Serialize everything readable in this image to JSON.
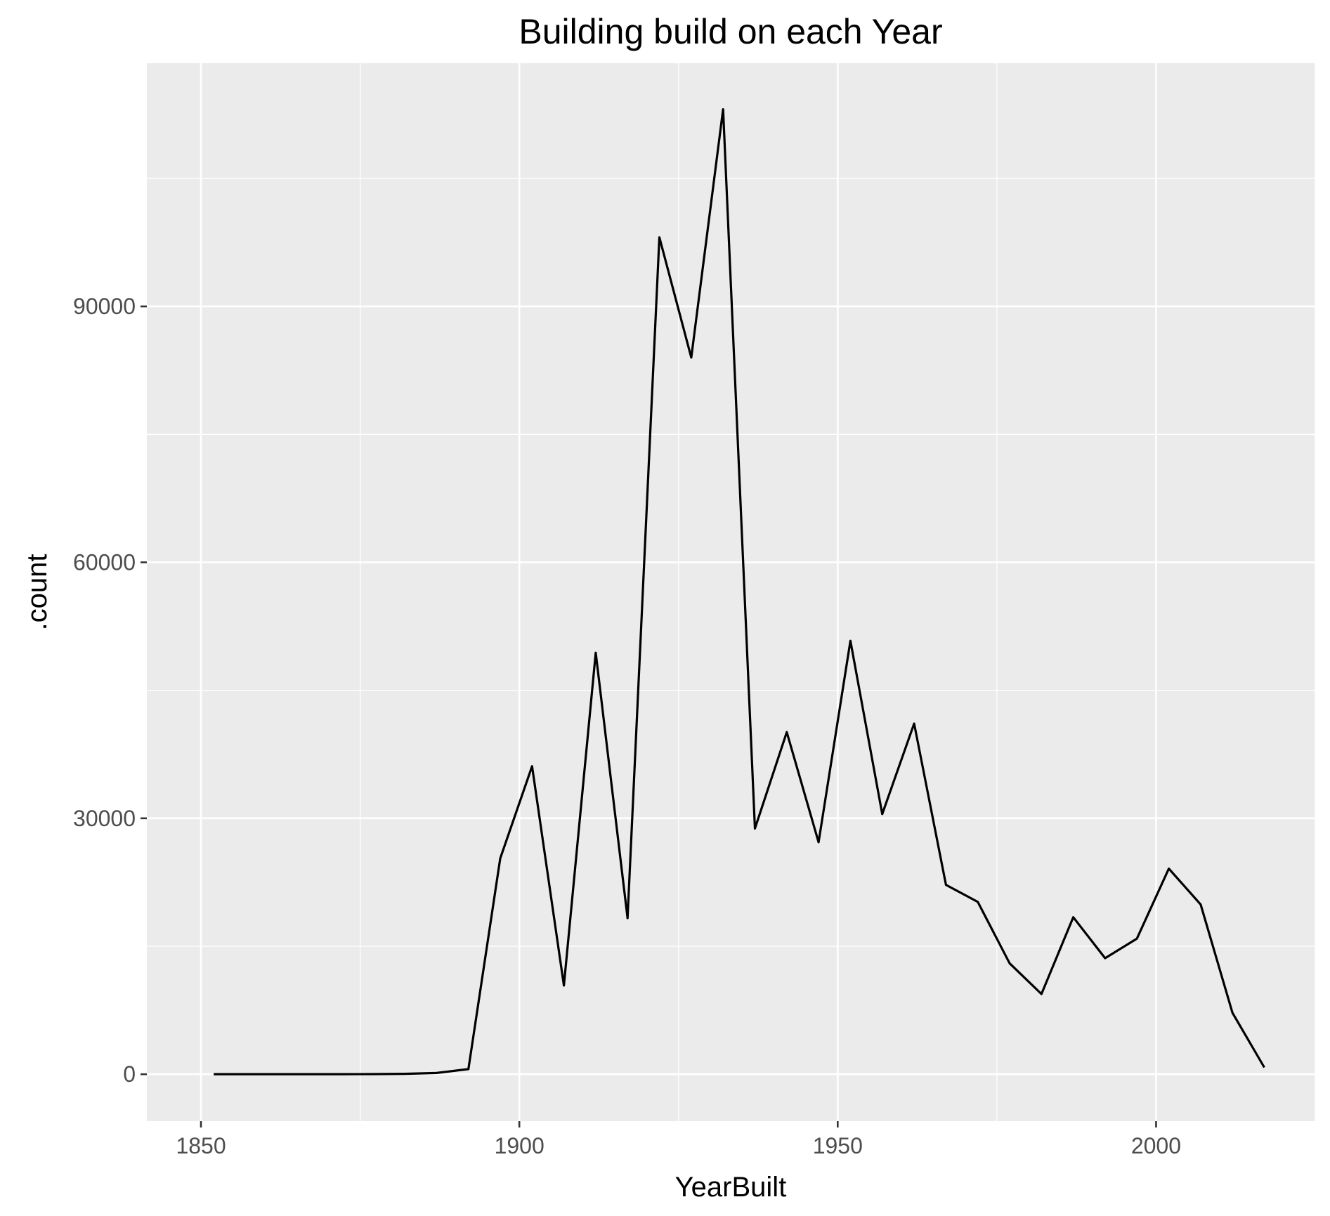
{
  "chart_data": {
    "type": "line",
    "title": "Building build on each Year",
    "xlabel": "YearBuilt",
    "ylabel": ".count",
    "xlim": [
      1841.5,
      2025
    ],
    "ylim": [
      -5500,
      118500
    ],
    "x_ticks": [
      1850,
      1900,
      1950,
      2000
    ],
    "y_ticks": [
      0,
      30000,
      60000,
      90000
    ],
    "grid": true,
    "legend": "none",
    "colors": {
      "panel": "#ebebeb",
      "grid": "#ffffff",
      "line": "#000000",
      "tick_label": "#4d4d4d"
    },
    "series": [
      {
        "x": [
          1852,
          1857,
          1862,
          1867,
          1872,
          1877,
          1882,
          1887,
          1892,
          1897,
          1902,
          1907,
          1912,
          1917,
          1922,
          1927,
          1932,
          1937,
          1942,
          1947,
          1952,
          1957,
          1962,
          1967,
          1972,
          1977,
          1982,
          1987,
          1992,
          1997,
          2002,
          2007,
          2012,
          2017
        ],
        "values": [
          10,
          10,
          10,
          10,
          10,
          20,
          50,
          150,
          600,
          25300,
          36100,
          10400,
          49400,
          18300,
          98100,
          84000,
          113100,
          28800,
          40100,
          27200,
          50800,
          30500,
          41100,
          22200,
          20200,
          13000,
          9400,
          18400,
          13600,
          15900,
          24100,
          19900,
          7200,
          800
        ]
      }
    ]
  }
}
